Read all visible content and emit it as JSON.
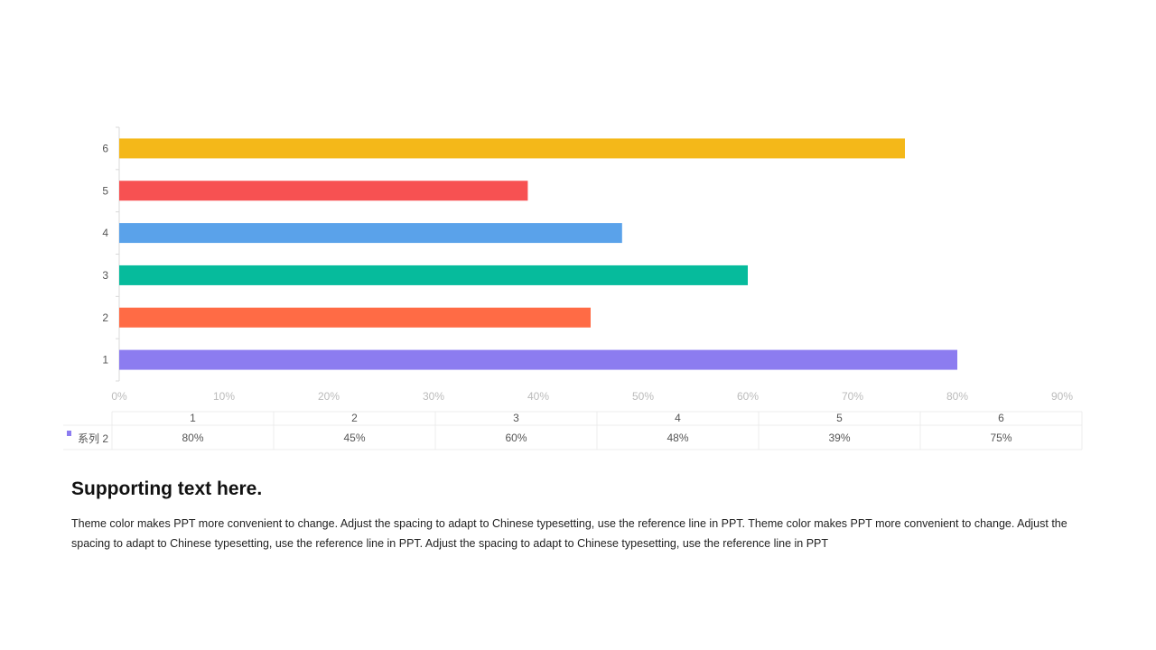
{
  "chart_data": {
    "type": "bar",
    "orientation": "horizontal",
    "categories": [
      "1",
      "2",
      "3",
      "4",
      "5",
      "6"
    ],
    "series": [
      {
        "name": "系列 2",
        "values": [
          80,
          45,
          60,
          48,
          39,
          75
        ]
      }
    ],
    "bar_colors": [
      "#8c7cf0",
      "#ff6b45",
      "#06bb9c",
      "#5aa2ea",
      "#f75152",
      "#f4b819"
    ],
    "legend_color": "#8c7cf0",
    "x_ticks": [
      "0%",
      "10%",
      "20%",
      "30%",
      "40%",
      "50%",
      "60%",
      "70%",
      "80%",
      "90%"
    ],
    "xlim": [
      0,
      90
    ],
    "data_table": {
      "headers": [
        "1",
        "2",
        "3",
        "4",
        "5",
        "6"
      ],
      "row_label": "系列 2",
      "cells": [
        "80%",
        "45%",
        "60%",
        "48%",
        "39%",
        "75%"
      ]
    },
    "grid": false,
    "legend": "data-table"
  },
  "text": {
    "heading": "Supporting text here.",
    "body": "Theme color makes PPT more convenient to change. Adjust the spacing to adapt to Chinese typesetting, use the reference line in PPT. Theme color makes PPT more convenient to change. Adjust the spacing to adapt to Chinese typesetting, use the reference line in PPT. Adjust the spacing to adapt to Chinese typesetting, use the reference line in PPT"
  }
}
